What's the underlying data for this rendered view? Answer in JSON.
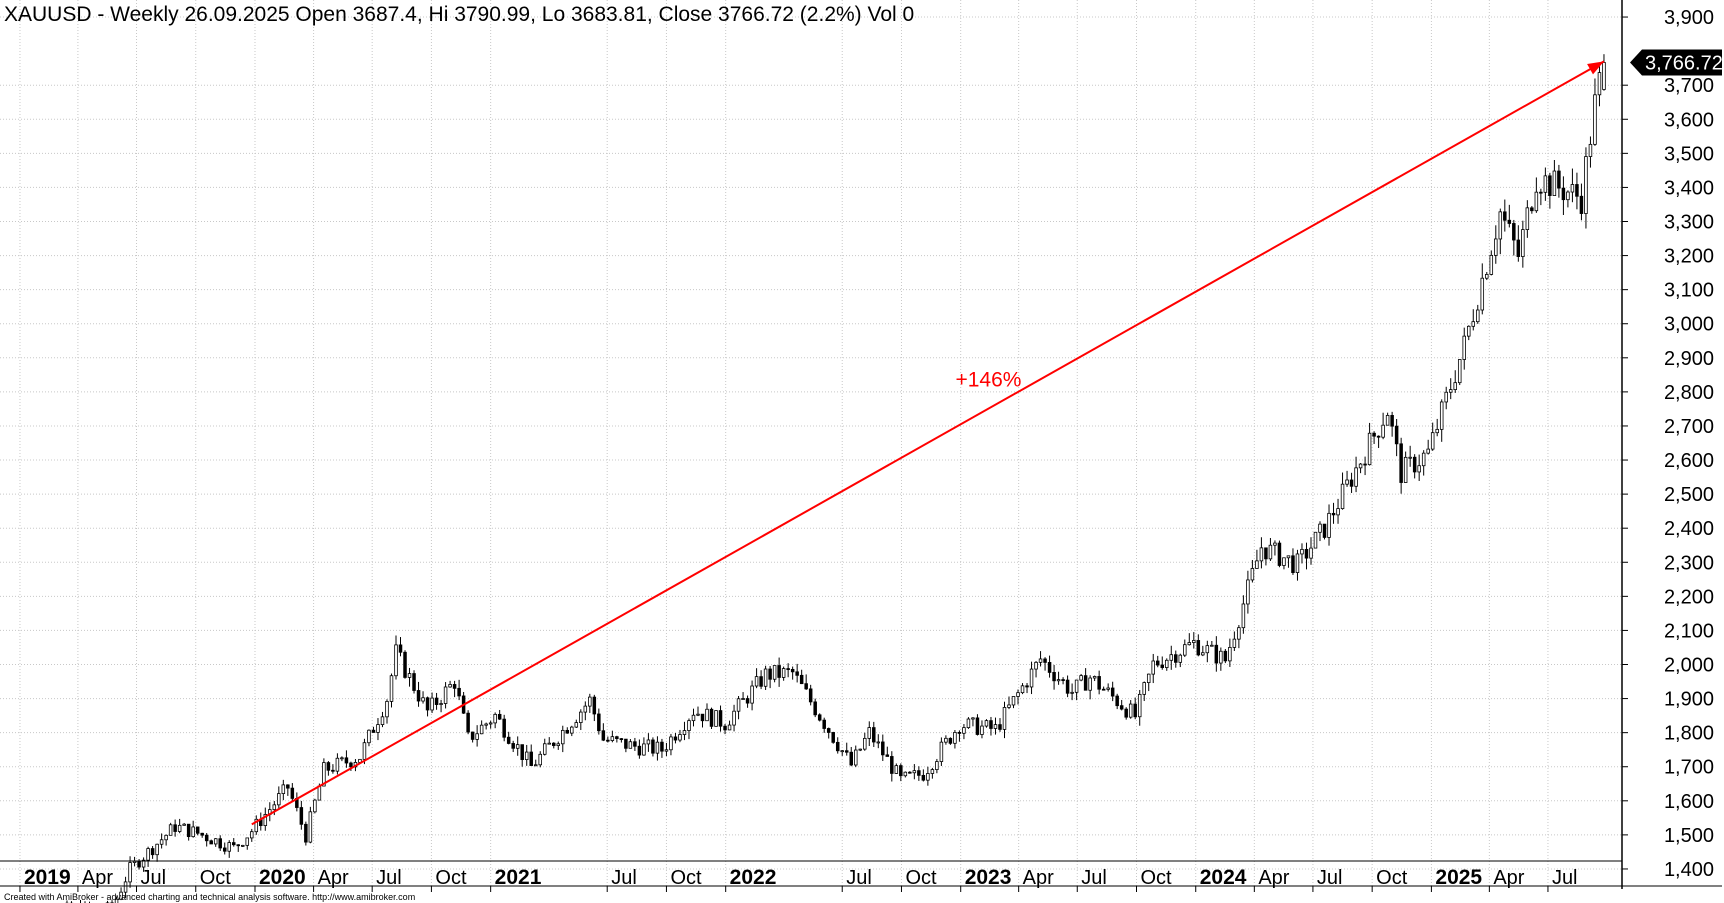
{
  "chart_data": {
    "type": "candlestick",
    "title": "XAUUSD - Weekly 26.09.2025 Open 3687.4, Hi 3790.99, Lo 3683.81, Close 3766.72 (2.2%) Vol 0",
    "symbol": "XAUUSD",
    "timeframe": "Weekly",
    "last_bar": {
      "date": "26.09.2025",
      "open": 3687.4,
      "high": 3790.99,
      "low": 3683.81,
      "close": 3766.72,
      "change_pct": 2.2,
      "volume": 0
    },
    "last_price_label": "3,766.72",
    "yaxis": {
      "position": "right",
      "ylim": [
        1350,
        3950
      ],
      "ticks": [
        1400,
        1500,
        1600,
        1700,
        1800,
        1900,
        2000,
        2100,
        2200,
        2300,
        2400,
        2500,
        2600,
        2700,
        2800,
        2900,
        3000,
        3100,
        3200,
        3300,
        3400,
        3500,
        3600,
        3700,
        3900
      ],
      "tick_labels": [
        "1,400",
        "1,500",
        "1,600",
        "1,700",
        "1,800",
        "1,900",
        "2,000",
        "2,100",
        "2,200",
        "2,300",
        "2,400",
        "2,500",
        "2,600",
        "2,700",
        "2,800",
        "2,900",
        "3,000",
        "3,100",
        "3,200",
        "3,300",
        "3,400",
        "3,500",
        "3,600",
        "3,700",
        "3,900"
      ]
    },
    "xaxis": {
      "range": [
        "2018-12-01",
        "2025-10-24"
      ],
      "ticks": [
        {
          "date": "2019-01-01",
          "label": "2019",
          "year": true
        },
        {
          "date": "2019-04-01",
          "label": "Apr"
        },
        {
          "date": "2019-07-01",
          "label": "Jul"
        },
        {
          "date": "2019-10-01",
          "label": "Oct"
        },
        {
          "date": "2020-01-01",
          "label": "2020",
          "year": true
        },
        {
          "date": "2020-04-01",
          "label": "Apr"
        },
        {
          "date": "2020-07-01",
          "label": "Jul"
        },
        {
          "date": "2020-10-01",
          "label": "Oct"
        },
        {
          "date": "2021-01-01",
          "label": "2021",
          "year": true
        },
        {
          "date": "2021-07-01",
          "label": "Jul"
        },
        {
          "date": "2021-10-01",
          "label": "Oct"
        },
        {
          "date": "2022-01-01",
          "label": "2022",
          "year": true
        },
        {
          "date": "2022-07-01",
          "label": "Jul"
        },
        {
          "date": "2022-10-01",
          "label": "Oct"
        },
        {
          "date": "2023-01-01",
          "label": "2023",
          "year": true
        },
        {
          "date": "2023-04-01",
          "label": "Apr"
        },
        {
          "date": "2023-07-01",
          "label": "Jul"
        },
        {
          "date": "2023-10-01",
          "label": "Oct"
        },
        {
          "date": "2024-01-01",
          "label": "2024",
          "year": true
        },
        {
          "date": "2024-04-01",
          "label": "Apr"
        },
        {
          "date": "2024-07-01",
          "label": "Jul"
        },
        {
          "date": "2024-10-01",
          "label": "Oct"
        },
        {
          "date": "2025-01-01",
          "label": "2025",
          "year": true
        },
        {
          "date": "2025-04-01",
          "label": "Apr"
        },
        {
          "date": "2025-07-01",
          "label": "Jul"
        }
      ]
    },
    "grid": true,
    "trend_arrow": {
      "start": {
        "date": "2019-12-27",
        "value": 1531
      },
      "end": {
        "date": "2025-09-26",
        "value": 3770
      },
      "color": "#ff0000",
      "label": "+146%"
    },
    "price_anchors": [
      {
        "date": "2018-12-28",
        "value": 1279
      },
      {
        "date": "2019-05-24",
        "value": 1284
      },
      {
        "date": "2019-06-21",
        "value": 1400
      },
      {
        "date": "2019-08-30",
        "value": 1525
      },
      {
        "date": "2019-10-04",
        "value": 1505
      },
      {
        "date": "2019-11-29",
        "value": 1462
      },
      {
        "date": "2019-12-27",
        "value": 1512
      },
      {
        "date": "2020-02-21",
        "value": 1640
      },
      {
        "date": "2020-03-20",
        "value": 1498
      },
      {
        "date": "2020-04-17",
        "value": 1690
      },
      {
        "date": "2020-06-12",
        "value": 1730
      },
      {
        "date": "2020-07-24",
        "value": 1900
      },
      {
        "date": "2020-08-07",
        "value": 2035
      },
      {
        "date": "2020-09-25",
        "value": 1862
      },
      {
        "date": "2020-11-06",
        "value": 1950
      },
      {
        "date": "2020-11-27",
        "value": 1782
      },
      {
        "date": "2021-01-08",
        "value": 1850
      },
      {
        "date": "2021-03-05",
        "value": 1700
      },
      {
        "date": "2021-06-04",
        "value": 1895
      },
      {
        "date": "2021-06-25",
        "value": 1780
      },
      {
        "date": "2021-08-06",
        "value": 1762
      },
      {
        "date": "2021-09-24",
        "value": 1750
      },
      {
        "date": "2021-11-12",
        "value": 1865
      },
      {
        "date": "2021-12-31",
        "value": 1828
      },
      {
        "date": "2022-03-04",
        "value": 1970
      },
      {
        "date": "2022-04-15",
        "value": 1975
      },
      {
        "date": "2022-07-15",
        "value": 1705
      },
      {
        "date": "2022-08-12",
        "value": 1800
      },
      {
        "date": "2022-09-30",
        "value": 1660
      },
      {
        "date": "2022-11-04",
        "value": 1680
      },
      {
        "date": "2022-12-30",
        "value": 1824
      },
      {
        "date": "2023-02-24",
        "value": 1810
      },
      {
        "date": "2023-05-05",
        "value": 2016
      },
      {
        "date": "2023-06-23",
        "value": 1920
      },
      {
        "date": "2023-07-21",
        "value": 1962
      },
      {
        "date": "2023-09-29",
        "value": 1848
      },
      {
        "date": "2023-10-27",
        "value": 2000
      },
      {
        "date": "2023-12-29",
        "value": 2063
      },
      {
        "date": "2024-02-16",
        "value": 2013
      },
      {
        "date": "2024-04-12",
        "value": 2345
      },
      {
        "date": "2024-06-07",
        "value": 2293
      },
      {
        "date": "2024-07-19",
        "value": 2400
      },
      {
        "date": "2024-10-25",
        "value": 2747
      },
      {
        "date": "2024-11-15",
        "value": 2563
      },
      {
        "date": "2024-12-27",
        "value": 2620
      },
      {
        "date": "2025-02-21",
        "value": 2936
      },
      {
        "date": "2025-04-18",
        "value": 3327
      },
      {
        "date": "2025-05-16",
        "value": 3200
      },
      {
        "date": "2025-06-13",
        "value": 3430
      },
      {
        "date": "2025-08-22",
        "value": 3370
      },
      {
        "date": "2025-09-12",
        "value": 3643
      },
      {
        "date": "2025-09-26",
        "value": 3766.72
      }
    ]
  },
  "footer": "Created with AmiBroker - advanced charting and technical analysis software. http://www.amibroker.com"
}
